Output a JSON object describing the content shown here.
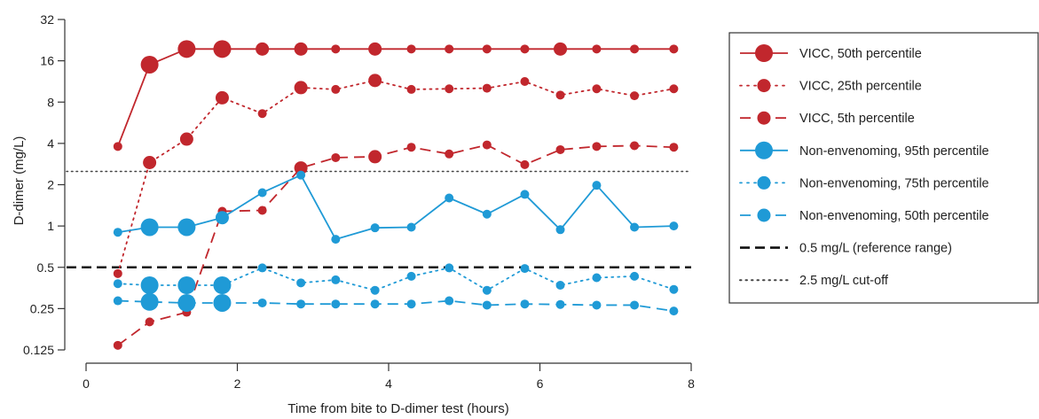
{
  "chart_data": {
    "type": "line",
    "xlabel": "Time from bite to D-dimer test (hours)",
    "ylabel": "D-dimer (mg/L)",
    "xlim": [
      0,
      8
    ],
    "ylim": [
      0.125,
      32
    ],
    "yscale": "log2",
    "xticks": [
      {
        "value": 0,
        "label": "0"
      },
      {
        "value": 2,
        "label": "2"
      },
      {
        "value": 4,
        "label": "4"
      },
      {
        "value": 6,
        "label": "6"
      },
      {
        "value": 8,
        "label": "8"
      }
    ],
    "yticks": [
      {
        "value": 0.125,
        "label": "0.125"
      },
      {
        "value": 0.25,
        "label": "0.25"
      },
      {
        "value": 0.5,
        "label": "0.5"
      },
      {
        "value": 1,
        "label": "1"
      },
      {
        "value": 2,
        "label": "2"
      },
      {
        "value": 4,
        "label": "4"
      },
      {
        "value": 8,
        "label": "8"
      },
      {
        "value": 16,
        "label": "16"
      },
      {
        "value": 32,
        "label": "32"
      }
    ],
    "grid": false,
    "legend_position": "right",
    "series": [
      {
        "name": "VICC, 50th percentile",
        "color": "#c1272d",
        "dash": "solid",
        "points": [
          {
            "x": 0.42,
            "y": 3.8,
            "size": "small"
          },
          {
            "x": 0.84,
            "y": 15.0,
            "size": "large"
          },
          {
            "x": 1.33,
            "y": 19.5,
            "size": "large"
          },
          {
            "x": 1.8,
            "y": 19.5,
            "size": "large"
          },
          {
            "x": 2.33,
            "y": 19.5,
            "size": "medium"
          },
          {
            "x": 2.84,
            "y": 19.5,
            "size": "medium"
          },
          {
            "x": 3.3,
            "y": 19.5,
            "size": "small"
          },
          {
            "x": 3.82,
            "y": 19.5,
            "size": "medium"
          },
          {
            "x": 4.3,
            "y": 19.5,
            "size": "small"
          },
          {
            "x": 4.8,
            "y": 19.5,
            "size": "small"
          },
          {
            "x": 5.3,
            "y": 19.5,
            "size": "small"
          },
          {
            "x": 5.8,
            "y": 19.5,
            "size": "small"
          },
          {
            "x": 6.27,
            "y": 19.5,
            "size": "medium"
          },
          {
            "x": 6.75,
            "y": 19.5,
            "size": "small"
          },
          {
            "x": 7.25,
            "y": 19.5,
            "size": "small"
          },
          {
            "x": 7.77,
            "y": 19.5,
            "size": "small"
          }
        ]
      },
      {
        "name": "VICC, 25th percentile",
        "color": "#c1272d",
        "dash": "dotted",
        "points": [
          {
            "x": 0.42,
            "y": 0.45,
            "size": "small"
          },
          {
            "x": 0.84,
            "y": 2.9,
            "size": "medium"
          },
          {
            "x": 1.33,
            "y": 4.3,
            "size": "medium"
          },
          {
            "x": 1.8,
            "y": 8.6,
            "size": "medium"
          },
          {
            "x": 2.33,
            "y": 6.6,
            "size": "small"
          },
          {
            "x": 2.84,
            "y": 10.2,
            "size": "medium"
          },
          {
            "x": 3.3,
            "y": 9.9,
            "size": "small"
          },
          {
            "x": 3.82,
            "y": 11.5,
            "size": "medium"
          },
          {
            "x": 4.3,
            "y": 9.9,
            "size": "small"
          },
          {
            "x": 4.8,
            "y": 10.0,
            "size": "small"
          },
          {
            "x": 5.3,
            "y": 10.1,
            "size": "small"
          },
          {
            "x": 5.8,
            "y": 11.3,
            "size": "small"
          },
          {
            "x": 6.27,
            "y": 9.0,
            "size": "small"
          },
          {
            "x": 6.75,
            "y": 10.0,
            "size": "small"
          },
          {
            "x": 7.25,
            "y": 8.9,
            "size": "small"
          },
          {
            "x": 7.77,
            "y": 10.0,
            "size": "small"
          }
        ]
      },
      {
        "name": "VICC, 5th percentile",
        "color": "#c1272d",
        "dash": "dashed",
        "points": [
          {
            "x": 0.42,
            "y": 0.135,
            "size": "small"
          },
          {
            "x": 0.84,
            "y": 0.2,
            "size": "small"
          },
          {
            "x": 1.33,
            "y": 0.235,
            "size": "small"
          },
          {
            "x": 1.8,
            "y": 1.28,
            "size": "small"
          },
          {
            "x": 2.33,
            "y": 1.3,
            "size": "small"
          },
          {
            "x": 2.84,
            "y": 2.65,
            "size": "medium"
          },
          {
            "x": 3.3,
            "y": 3.15,
            "size": "small"
          },
          {
            "x": 3.82,
            "y": 3.2,
            "size": "medium"
          },
          {
            "x": 4.3,
            "y": 3.75,
            "size": "small"
          },
          {
            "x": 4.8,
            "y": 3.35,
            "size": "small"
          },
          {
            "x": 5.3,
            "y": 3.9,
            "size": "small"
          },
          {
            "x": 5.8,
            "y": 2.8,
            "size": "small"
          },
          {
            "x": 6.27,
            "y": 3.6,
            "size": "small"
          },
          {
            "x": 6.75,
            "y": 3.8,
            "size": "small"
          },
          {
            "x": 7.25,
            "y": 3.85,
            "size": "small"
          },
          {
            "x": 7.77,
            "y": 3.75,
            "size": "small"
          }
        ]
      },
      {
        "name": "Non-envenoming, 95th percentile",
        "color": "#1f9ad6",
        "dash": "solid",
        "points": [
          {
            "x": 0.42,
            "y": 0.9,
            "size": "small"
          },
          {
            "x": 0.84,
            "y": 0.98,
            "size": "large"
          },
          {
            "x": 1.33,
            "y": 0.98,
            "size": "large"
          },
          {
            "x": 1.8,
            "y": 1.15,
            "size": "medium"
          },
          {
            "x": 2.33,
            "y": 1.75,
            "size": "small"
          },
          {
            "x": 2.84,
            "y": 2.35,
            "size": "small"
          },
          {
            "x": 3.3,
            "y": 0.8,
            "size": "small"
          },
          {
            "x": 3.82,
            "y": 0.97,
            "size": "small"
          },
          {
            "x": 4.3,
            "y": 0.98,
            "size": "small"
          },
          {
            "x": 4.8,
            "y": 1.6,
            "size": "small"
          },
          {
            "x": 5.3,
            "y": 1.22,
            "size": "small"
          },
          {
            "x": 5.8,
            "y": 1.7,
            "size": "small"
          },
          {
            "x": 6.27,
            "y": 0.94,
            "size": "small"
          },
          {
            "x": 6.75,
            "y": 1.98,
            "size": "small"
          },
          {
            "x": 7.25,
            "y": 0.98,
            "size": "small"
          },
          {
            "x": 7.77,
            "y": 1.0,
            "size": "small"
          }
        ]
      },
      {
        "name": "Non-envenoming, 75th percentile",
        "color": "#1f9ad6",
        "dash": "dotted",
        "points": [
          {
            "x": 0.42,
            "y": 0.38,
            "size": "small"
          },
          {
            "x": 0.84,
            "y": 0.37,
            "size": "large"
          },
          {
            "x": 1.33,
            "y": 0.37,
            "size": "large"
          },
          {
            "x": 1.8,
            "y": 0.37,
            "size": "large"
          },
          {
            "x": 2.33,
            "y": 0.495,
            "size": "small"
          },
          {
            "x": 2.84,
            "y": 0.385,
            "size": "small"
          },
          {
            "x": 3.3,
            "y": 0.405,
            "size": "small"
          },
          {
            "x": 3.82,
            "y": 0.34,
            "size": "small"
          },
          {
            "x": 4.3,
            "y": 0.43,
            "size": "small"
          },
          {
            "x": 4.8,
            "y": 0.495,
            "size": "small"
          },
          {
            "x": 5.3,
            "y": 0.34,
            "size": "small"
          },
          {
            "x": 5.8,
            "y": 0.49,
            "size": "small"
          },
          {
            "x": 6.27,
            "y": 0.37,
            "size": "small"
          },
          {
            "x": 6.75,
            "y": 0.42,
            "size": "small"
          },
          {
            "x": 7.25,
            "y": 0.43,
            "size": "small"
          },
          {
            "x": 7.77,
            "y": 0.345,
            "size": "small"
          }
        ]
      },
      {
        "name": "Non-envenoming, 50th percentile",
        "color": "#1f9ad6",
        "dash": "dashed",
        "points": [
          {
            "x": 0.42,
            "y": 0.285,
            "size": "small"
          },
          {
            "x": 0.84,
            "y": 0.28,
            "size": "large"
          },
          {
            "x": 1.33,
            "y": 0.275,
            "size": "large"
          },
          {
            "x": 1.8,
            "y": 0.275,
            "size": "large"
          },
          {
            "x": 2.33,
            "y": 0.275,
            "size": "small"
          },
          {
            "x": 2.84,
            "y": 0.27,
            "size": "small"
          },
          {
            "x": 3.3,
            "y": 0.27,
            "size": "small"
          },
          {
            "x": 3.82,
            "y": 0.27,
            "size": "small"
          },
          {
            "x": 4.3,
            "y": 0.27,
            "size": "small"
          },
          {
            "x": 4.8,
            "y": 0.285,
            "size": "small"
          },
          {
            "x": 5.3,
            "y": 0.265,
            "size": "small"
          },
          {
            "x": 5.8,
            "y": 0.27,
            "size": "small"
          },
          {
            "x": 6.27,
            "y": 0.268,
            "size": "small"
          },
          {
            "x": 6.75,
            "y": 0.265,
            "size": "small"
          },
          {
            "x": 7.25,
            "y": 0.265,
            "size": "small"
          },
          {
            "x": 7.77,
            "y": 0.24,
            "size": "small"
          }
        ]
      }
    ],
    "reference_lines": [
      {
        "name": "0.5 mg/L (reference range)",
        "y": 0.5,
        "color": "#111111",
        "dash": "dashed"
      },
      {
        "name": "2.5 mg/L cut-off",
        "y": 2.5,
        "color": "#444444",
        "dash": "dotted"
      }
    ]
  }
}
